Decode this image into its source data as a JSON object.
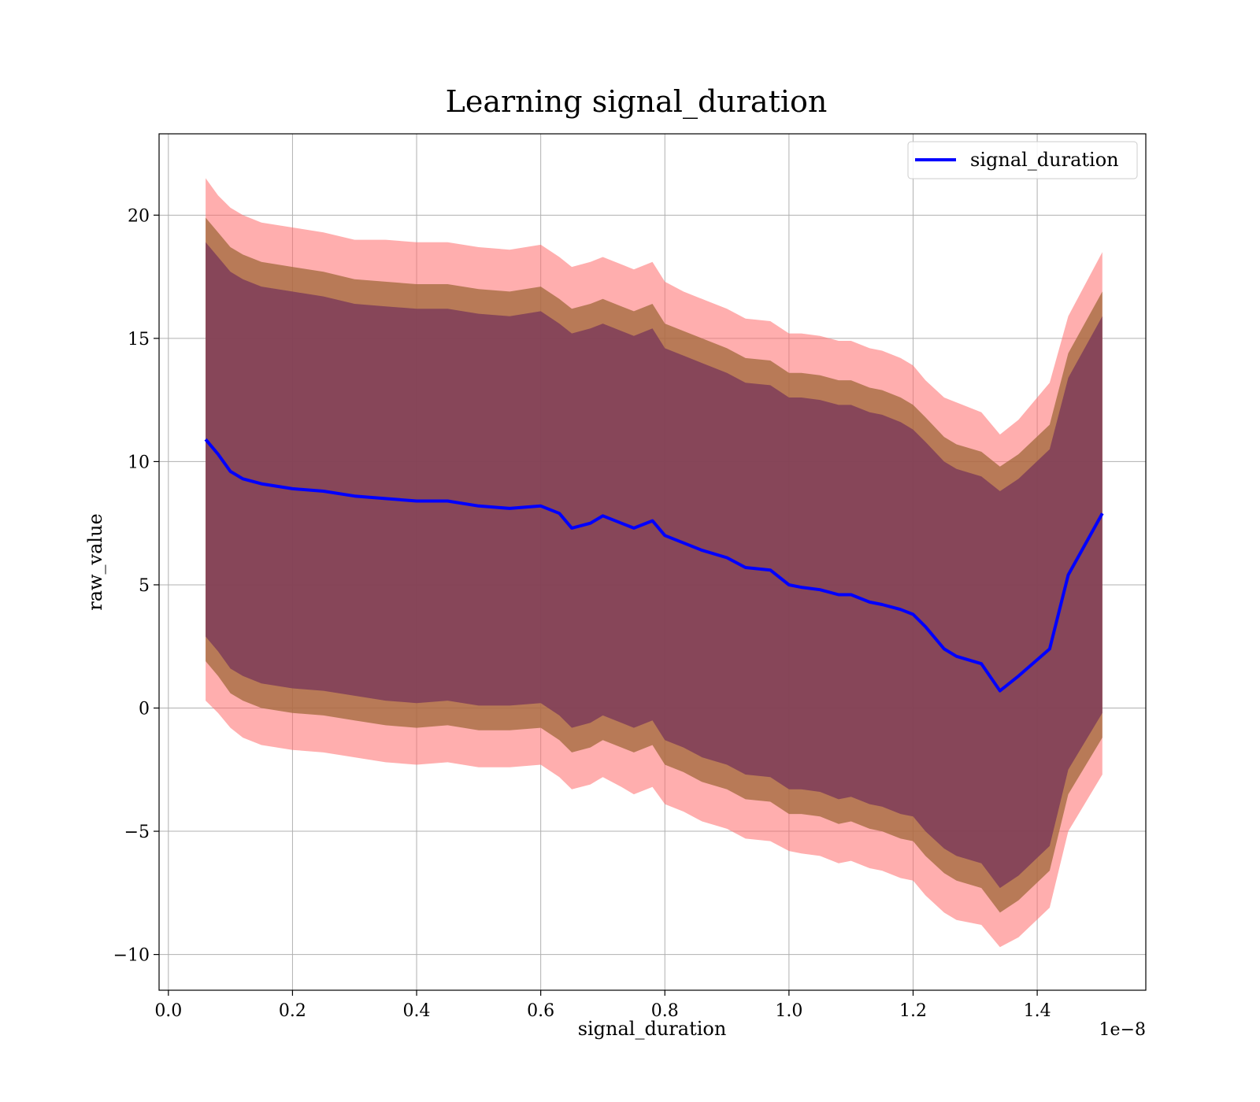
{
  "chart_data": {
    "type": "area",
    "title": "Learning signal_duration",
    "xlabel": "signal_duration",
    "ylabel": "raw_value",
    "x_offset_text": "1e−8",
    "xlim": [
      -0.015,
      1.575
    ],
    "ylim": [
      -11.45,
      23.3
    ],
    "xticks": [
      0.0,
      0.2,
      0.4,
      0.6,
      0.8,
      1.0,
      1.2,
      1.4
    ],
    "xtick_labels": [
      "0.0",
      "0.2",
      "0.4",
      "0.6",
      "0.8",
      "1.0",
      "1.2",
      "1.4"
    ],
    "yticks": [
      -10,
      -5,
      0,
      5,
      10,
      15,
      20
    ],
    "ytick_labels": [
      "−10",
      "−5",
      "0",
      "5",
      "10",
      "15",
      "20"
    ],
    "grid": true,
    "legend": {
      "position": "top-right",
      "entries": [
        "signal_duration"
      ]
    },
    "colors": {
      "line": "#0000ff",
      "band_outer": "#ff6b6b",
      "band_middle": "#a0683a",
      "band_inner": "#7a3a5a"
    },
    "x": [
      0.06,
      0.08,
      0.1,
      0.12,
      0.15,
      0.2,
      0.25,
      0.3,
      0.35,
      0.4,
      0.45,
      0.5,
      0.55,
      0.6,
      0.63,
      0.65,
      0.68,
      0.7,
      0.73,
      0.75,
      0.78,
      0.8,
      0.83,
      0.86,
      0.9,
      0.93,
      0.97,
      1.0,
      1.02,
      1.05,
      1.08,
      1.1,
      1.13,
      1.15,
      1.18,
      1.2,
      1.22,
      1.25,
      1.27,
      1.31,
      1.34,
      1.37,
      1.42,
      1.45,
      1.505
    ],
    "series": [
      {
        "name": "signal_duration",
        "values": [
          10.9,
          10.3,
          9.6,
          9.3,
          9.1,
          8.9,
          8.8,
          8.6,
          8.5,
          8.4,
          8.4,
          8.2,
          8.1,
          8.2,
          7.9,
          7.3,
          7.5,
          7.8,
          7.5,
          7.3,
          7.6,
          7.0,
          6.7,
          6.4,
          6.1,
          5.7,
          5.6,
          5.0,
          4.9,
          4.8,
          4.6,
          4.6,
          4.3,
          4.2,
          4.0,
          3.8,
          3.3,
          2.4,
          2.1,
          1.8,
          0.7,
          1.3,
          2.4,
          5.4,
          7.9
        ]
      }
    ],
    "bands": [
      {
        "level": "outer",
        "upper": [
          21.5,
          20.8,
          20.3,
          20.0,
          19.7,
          19.5,
          19.3,
          19.0,
          19.0,
          18.9,
          18.9,
          18.7,
          18.6,
          18.8,
          18.3,
          17.9,
          18.1,
          18.3,
          18.0,
          17.8,
          18.1,
          17.3,
          16.9,
          16.6,
          16.2,
          15.8,
          15.7,
          15.2,
          15.2,
          15.1,
          14.9,
          14.9,
          14.6,
          14.5,
          14.2,
          13.9,
          13.3,
          12.6,
          12.4,
          12.0,
          11.1,
          11.7,
          13.2,
          15.9,
          18.5
        ],
        "lower": [
          0.3,
          -0.2,
          -0.8,
          -1.2,
          -1.5,
          -1.7,
          -1.8,
          -2.0,
          -2.2,
          -2.3,
          -2.2,
          -2.4,
          -2.4,
          -2.3,
          -2.8,
          -3.3,
          -3.1,
          -2.8,
          -3.2,
          -3.5,
          -3.2,
          -3.9,
          -4.2,
          -4.6,
          -4.9,
          -5.3,
          -5.4,
          -5.8,
          -5.9,
          -6.0,
          -6.3,
          -6.2,
          -6.5,
          -6.6,
          -6.9,
          -7.0,
          -7.6,
          -8.3,
          -8.6,
          -8.8,
          -9.7,
          -9.3,
          -8.1,
          -5.0,
          -2.7
        ]
      },
      {
        "level": "middle",
        "upper": [
          19.9,
          19.3,
          18.7,
          18.4,
          18.1,
          17.9,
          17.7,
          17.4,
          17.3,
          17.2,
          17.2,
          17.0,
          16.9,
          17.1,
          16.6,
          16.2,
          16.4,
          16.6,
          16.3,
          16.1,
          16.4,
          15.6,
          15.3,
          15.0,
          14.6,
          14.2,
          14.1,
          13.6,
          13.6,
          13.5,
          13.3,
          13.3,
          13.0,
          12.9,
          12.6,
          12.3,
          11.8,
          11.0,
          10.7,
          10.4,
          9.8,
          10.3,
          11.5,
          14.4,
          16.9
        ],
        "lower": [
          1.9,
          1.3,
          0.6,
          0.3,
          0.0,
          -0.2,
          -0.3,
          -0.5,
          -0.7,
          -0.8,
          -0.7,
          -0.9,
          -0.9,
          -0.8,
          -1.3,
          -1.8,
          -1.6,
          -1.3,
          -1.6,
          -1.8,
          -1.5,
          -2.3,
          -2.6,
          -3.0,
          -3.3,
          -3.7,
          -3.8,
          -4.3,
          -4.3,
          -4.4,
          -4.7,
          -4.6,
          -4.9,
          -5.0,
          -5.3,
          -5.4,
          -6.0,
          -6.7,
          -7.0,
          -7.3,
          -8.3,
          -7.8,
          -6.6,
          -3.5,
          -1.2
        ]
      },
      {
        "level": "inner",
        "upper": [
          18.9,
          18.3,
          17.7,
          17.4,
          17.1,
          16.9,
          16.7,
          16.4,
          16.3,
          16.2,
          16.2,
          16.0,
          15.9,
          16.1,
          15.6,
          15.2,
          15.4,
          15.6,
          15.3,
          15.1,
          15.4,
          14.6,
          14.3,
          14.0,
          13.6,
          13.2,
          13.1,
          12.6,
          12.6,
          12.5,
          12.3,
          12.3,
          12.0,
          11.9,
          11.6,
          11.3,
          10.8,
          10.0,
          9.7,
          9.4,
          8.8,
          9.3,
          10.5,
          13.4,
          15.9
        ],
        "lower": [
          2.9,
          2.3,
          1.6,
          1.3,
          1.0,
          0.8,
          0.7,
          0.5,
          0.3,
          0.2,
          0.3,
          0.1,
          0.1,
          0.2,
          -0.3,
          -0.8,
          -0.6,
          -0.3,
          -0.6,
          -0.8,
          -0.5,
          -1.3,
          -1.6,
          -2.0,
          -2.3,
          -2.7,
          -2.8,
          -3.3,
          -3.3,
          -3.4,
          -3.7,
          -3.6,
          -3.9,
          -4.0,
          -4.3,
          -4.4,
          -5.0,
          -5.7,
          -6.0,
          -6.3,
          -7.3,
          -6.8,
          -5.6,
          -2.5,
          -0.2
        ]
      }
    ]
  }
}
